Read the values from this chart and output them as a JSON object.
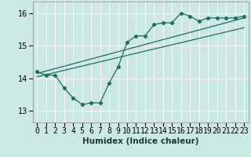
{
  "xlabel": "Humidex (Indice chaleur)",
  "ylabel": "",
  "bg_color": "#cce8e4",
  "grid_color": "#ffffff",
  "line_color": "#1a6e62",
  "xlim": [
    -0.5,
    23.5
  ],
  "ylim": [
    12.65,
    16.35
  ],
  "yticks": [
    13,
    14,
    15,
    16
  ],
  "xticks": [
    0,
    1,
    2,
    3,
    4,
    5,
    6,
    7,
    8,
    9,
    10,
    11,
    12,
    13,
    14,
    15,
    16,
    17,
    18,
    19,
    20,
    21,
    22,
    23
  ],
  "curve_x": [
    0,
    1,
    2,
    3,
    4,
    5,
    6,
    7,
    8,
    9,
    10,
    11,
    12,
    13,
    14,
    15,
    16,
    17,
    18,
    19,
    20,
    21,
    22,
    23
  ],
  "curve_y": [
    14.2,
    14.1,
    14.1,
    13.7,
    13.4,
    13.2,
    13.25,
    13.25,
    13.85,
    14.35,
    15.1,
    15.3,
    15.3,
    15.65,
    15.7,
    15.7,
    16.0,
    15.9,
    15.75,
    15.85,
    15.85,
    15.85,
    15.85,
    15.9
  ],
  "line1_x": [
    0,
    23
  ],
  "line1_y": [
    14.15,
    15.85
  ],
  "line2_x": [
    0,
    23
  ],
  "line2_y": [
    14.05,
    15.55
  ],
  "tick_fontsize": 7,
  "xlabel_fontsize": 7.5
}
